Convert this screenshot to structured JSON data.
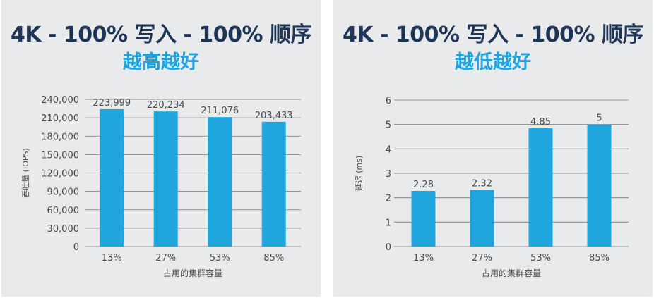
{
  "colors": {
    "bar": "#1fa6de",
    "title": "#1f3556",
    "subtitle": "#1ea4dc",
    "panel": "#e9eaeb",
    "axis_text": "#4a4a4a",
    "grid": "#777777"
  },
  "chart_data": [
    {
      "type": "bar",
      "title": "4K - 100% 写入 - 100% 顺序",
      "subtitle": "越高越好",
      "xlabel": "占用的集群容量",
      "ylabel": "吞吐量 (IOPS)",
      "categories": [
        "13%",
        "27%",
        "53%",
        "85%"
      ],
      "values": [
        223999,
        220234,
        211076,
        203433
      ],
      "value_labels": [
        "223,999",
        "220,234",
        "211,076",
        "203,433"
      ],
      "yticks": [
        0,
        30000,
        60000,
        90000,
        120000,
        150000,
        180000,
        210000,
        240000
      ],
      "ytick_labels": [
        "0",
        "30,000",
        "60,000",
        "90,000",
        "120,000",
        "150,000",
        "180,000",
        "210,000",
        "240,000"
      ],
      "ylim": [
        0,
        240000
      ],
      "grid": true
    },
    {
      "type": "bar",
      "title": "4K - 100% 写入 - 100% 顺序",
      "subtitle": "越低越好",
      "xlabel": "占用的集群容量",
      "ylabel": "延迟 (ms)",
      "categories": [
        "13%",
        "27%",
        "53%",
        "85%"
      ],
      "values": [
        2.28,
        2.32,
        4.85,
        5
      ],
      "value_labels": [
        "2.28",
        "2.32",
        "4.85",
        "5"
      ],
      "yticks": [
        0,
        1,
        2,
        3,
        4,
        5,
        6
      ],
      "ytick_labels": [
        "0",
        "1",
        "2",
        "3",
        "4",
        "5",
        "6"
      ],
      "ylim": [
        0,
        6
      ],
      "grid": true
    }
  ]
}
